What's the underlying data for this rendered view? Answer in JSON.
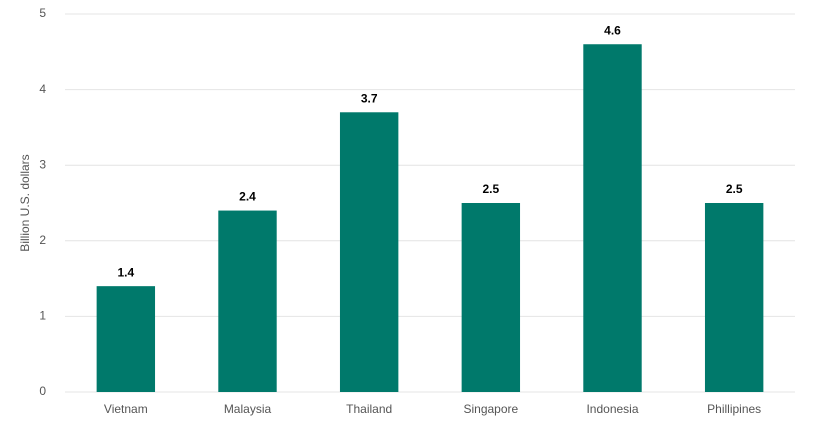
{
  "chart_data": {
    "type": "bar",
    "y_label": "Billion U.S. dollars",
    "categories": [
      "Vietnam",
      "Malaysia",
      "Thailand",
      "Singapore",
      "Indonesia",
      "Phillipines"
    ],
    "values": [
      1.4,
      2.4,
      3.7,
      2.5,
      4.6,
      2.5
    ],
    "color": "#00796b",
    "ylim": [
      0,
      5
    ],
    "yticks": [
      0,
      1,
      2,
      3,
      4,
      5
    ],
    "grid": true
  }
}
